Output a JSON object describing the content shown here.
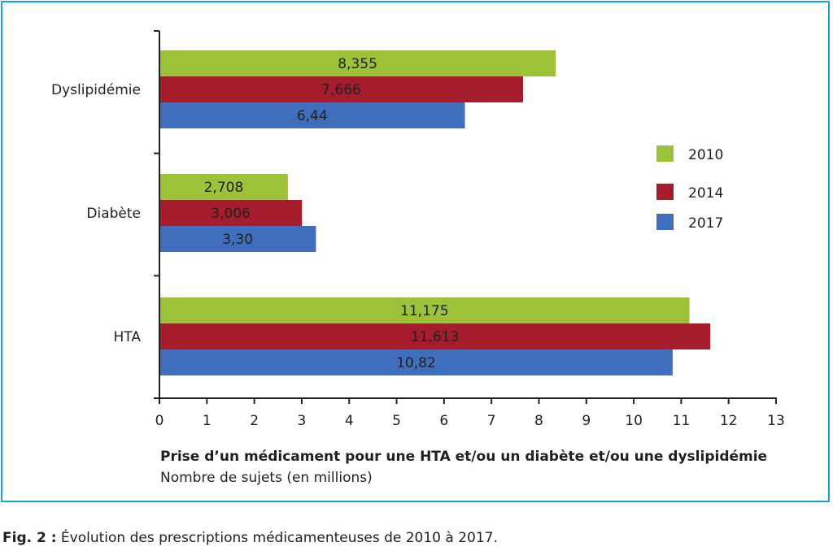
{
  "chart_data": {
    "type": "bar",
    "orientation": "horizontal",
    "categories": [
      "Dyslipidémie",
      "Diabète",
      "HTA"
    ],
    "series": [
      {
        "name": "2010",
        "values": [
          8.355,
          2.708,
          11.175
        ],
        "labels": [
          "8,355",
          "2,708",
          "11,175"
        ]
      },
      {
        "name": "2014",
        "values": [
          7.666,
          3.006,
          11.613
        ],
        "labels": [
          "7,666",
          "3,006",
          "11,613"
        ]
      },
      {
        "name": "2017",
        "values": [
          6.44,
          3.3,
          10.82
        ],
        "labels": [
          "6,44",
          "3,30",
          "10,82"
        ]
      }
    ],
    "xlim": [
      0,
      13
    ],
    "xticks": [
      0,
      1,
      2,
      3,
      4,
      5,
      6,
      7,
      8,
      9,
      10,
      11,
      12,
      13
    ],
    "xlabel": "Prise d’un médicament pour une HTA et/ou un diabète et/ou une dyslipidémie",
    "xlabel_sub": "Nombre de sujets (en millions)",
    "legend": "right",
    "colors": {
      "2010": "#9cc23a",
      "2014": "#a51d2d",
      "2017": "#3f6ebd",
      "frame": "#1ba3d8"
    }
  },
  "caption": {
    "prefix": "Fig. 2 :",
    "text": " Évolution des prescriptions médicamenteuses de 2010 à 2017."
  }
}
